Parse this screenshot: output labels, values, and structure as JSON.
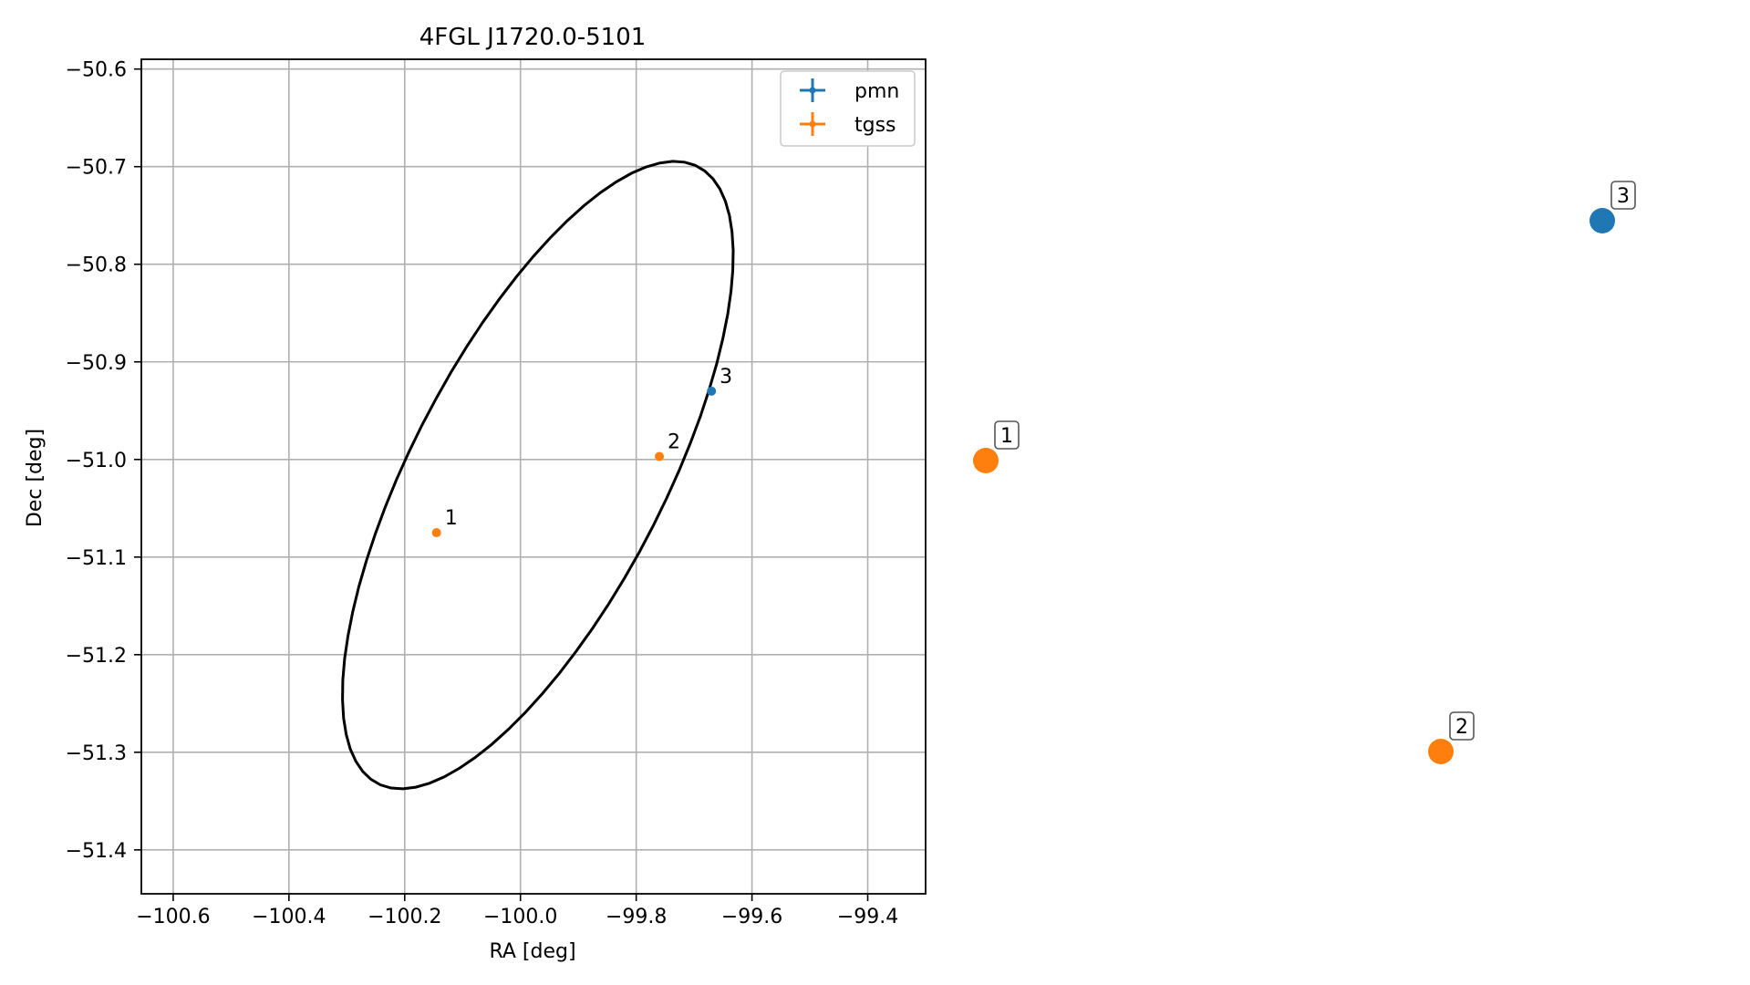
{
  "chart_data": {
    "type": "scatter",
    "title": "4FGL J1720.0-5101",
    "xlabel": "RA [deg]",
    "ylabel": "Dec [deg]",
    "xlim": [
      -100.655,
      -99.3
    ],
    "ylim": [
      -51.445,
      -50.59
    ],
    "xticks": [
      -100.6,
      -100.4,
      -100.2,
      -100.0,
      -99.8,
      -99.6,
      -99.4
    ],
    "xtick_labels": [
      "−100.6",
      "−100.4",
      "−100.2",
      "−100.0",
      "−99.8",
      "−99.6",
      "−99.4"
    ],
    "yticks": [
      -50.6,
      -50.7,
      -50.8,
      -50.9,
      -51.0,
      -51.1,
      -51.2,
      -51.3,
      -51.4
    ],
    "ytick_labels": [
      "−50.6",
      "−50.7",
      "−50.8",
      "−50.9",
      "−51.0",
      "−51.1",
      "−51.2",
      "−51.3",
      "−51.4"
    ],
    "grid": true,
    "legend_position": "top-right",
    "series": [
      {
        "name": "pmn",
        "color": "#1f77b4",
        "points": [
          {
            "label": "3",
            "ra": -99.67,
            "dec": -50.93
          }
        ]
      },
      {
        "name": "tgss",
        "color": "#ff7f0e",
        "points": [
          {
            "label": "1",
            "ra": -100.145,
            "dec": -51.075
          },
          {
            "label": "2",
            "ra": -99.76,
            "dec": -50.997
          }
        ]
      }
    ],
    "ellipse": {
      "center_ra": -99.97,
      "center_dec": -51.016,
      "semi_axis_ra": 0.43,
      "semi_axis_dec": 0.18,
      "angle_deg": 43,
      "color": "#000000"
    },
    "side_markers": [
      {
        "label": "1",
        "color": "#ff7f0e"
      },
      {
        "label": "2",
        "color": "#ff7f0e"
      },
      {
        "label": "3",
        "color": "#1f77b4"
      }
    ]
  }
}
